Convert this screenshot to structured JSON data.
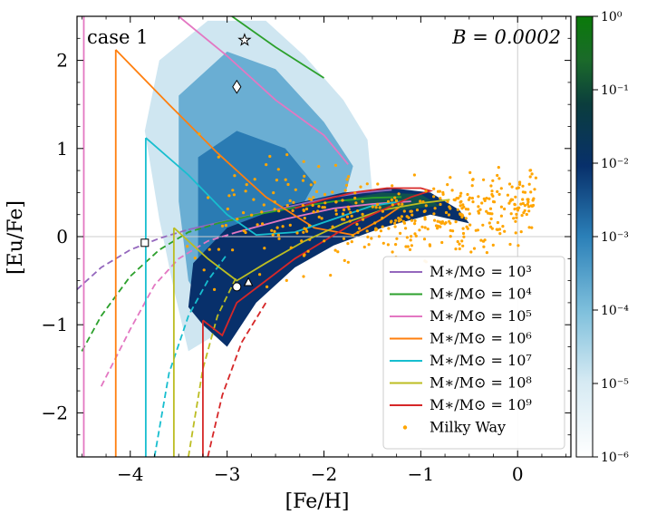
{
  "chart_data": {
    "type": "scatter",
    "xlabel": "[Fe/H]",
    "ylabel": "[Eu/Fe]",
    "xlim": [
      -4.55,
      0.55
    ],
    "ylim": [
      -2.5,
      2.5
    ],
    "x_ticks": [
      -4,
      -3,
      -2,
      -1,
      0
    ],
    "y_ticks": [
      -2,
      -1,
      0,
      1,
      2
    ],
    "x_tick_labels": [
      "−4",
      "−3",
      "−2",
      "−1",
      "0"
    ],
    "y_tick_labels": [
      "−2",
      "−1",
      "0",
      "1",
      "2"
    ],
    "annotation_left": "case 1",
    "annotation_right": "B = 0.0002",
    "legend_placement": "lower-right",
    "grid": "reference lines at x=0 and y=0",
    "colorbar": {
      "scale": "log",
      "range": [
        1e-06,
        1
      ],
      "tick_labels": [
        "10⁰",
        "10⁻¹",
        "10⁻²",
        "10⁻³",
        "10⁻⁴",
        "10⁻⁵",
        "10⁻⁶"
      ],
      "colormap": [
        "#ffffff",
        "#b9dcea",
        "#5aa8cb",
        "#1a5f9a",
        "#08306b",
        "#0b3a4a",
        "#1b6e2e",
        "#0c7a0c"
      ]
    },
    "series": [
      {
        "name": "M∗/M⊙ = 10³",
        "color": "#9467bd",
        "dashed": [
          [
            -4.55,
            -0.6
          ],
          [
            -4.3,
            -0.35
          ],
          [
            -4.0,
            -0.15
          ],
          [
            -3.7,
            -0.02
          ],
          [
            -3.4,
            0.08
          ]
        ],
        "solid": [
          [
            -3.4,
            0.08
          ],
          [
            -3.0,
            0.18
          ],
          [
            -2.6,
            0.28
          ],
          [
            -2.2,
            0.38
          ],
          [
            -1.9,
            0.45
          ],
          [
            -1.6,
            0.5
          ],
          [
            -1.3,
            0.53
          ]
        ]
      },
      {
        "name": "M∗/M⊙ = 10⁴",
        "color": "#2ca02c",
        "dashed": [
          [
            -4.5,
            -1.3
          ],
          [
            -4.3,
            -0.9
          ],
          [
            -4.0,
            -0.45
          ],
          [
            -3.7,
            -0.15
          ],
          [
            -3.4,
            0.05
          ],
          [
            -3.1,
            0.15
          ]
        ],
        "solid": [
          [
            -3.1,
            0.15
          ],
          [
            -2.7,
            0.25
          ],
          [
            -2.3,
            0.33
          ],
          [
            -1.9,
            0.4
          ],
          [
            -1.5,
            0.44
          ],
          [
            -1.2,
            0.45
          ]
        ],
        "upper": [
          [
            -2.95,
            2.5
          ],
          [
            -2.5,
            2.15
          ],
          [
            -2.0,
            1.8
          ]
        ]
      },
      {
        "name": "M∗/M⊙ = 10⁵",
        "color": "#e377c2",
        "vertical_x": -4.48,
        "dashed": [
          [
            -4.3,
            -1.7
          ],
          [
            -4.0,
            -1.05
          ],
          [
            -3.75,
            -0.55
          ],
          [
            -3.5,
            -0.25
          ],
          [
            -3.2,
            -0.05
          ],
          [
            -2.9,
            0.05
          ]
        ],
        "solid": [
          [
            -2.9,
            0.05
          ],
          [
            -2.4,
            0.2
          ],
          [
            -1.9,
            0.32
          ],
          [
            -1.5,
            0.37
          ],
          [
            -1.1,
            0.4
          ]
        ],
        "upper": [
          [
            -3.5,
            2.5
          ],
          [
            -3.0,
            2.05
          ],
          [
            -2.5,
            1.55
          ],
          [
            -2.0,
            1.15
          ],
          [
            -1.75,
            0.82
          ]
        ]
      },
      {
        "name": "M∗/M⊙ = 10⁶",
        "color": "#ff7f0e",
        "vertical_x": -4.15,
        "peak": [
          -4.15,
          2.12
        ],
        "solid": [
          [
            -4.15,
            2.12
          ],
          [
            -3.6,
            1.5
          ],
          [
            -3.1,
            0.95
          ],
          [
            -2.6,
            0.45
          ],
          [
            -2.1,
            0.1
          ],
          [
            -1.7,
            0.02
          ],
          [
            -1.4,
            0.2
          ],
          [
            -1.2,
            0.35
          ]
        ]
      },
      {
        "name": "M∗/M⊙ = 10⁷",
        "color": "#17becf",
        "vertical_x": -3.84,
        "peak": [
          -3.84,
          1.12
        ],
        "dashed": [
          [
            -3.75,
            -2.5
          ],
          [
            -3.6,
            -1.55
          ],
          [
            -3.4,
            -0.9
          ],
          [
            -3.2,
            -0.5
          ],
          [
            -3.0,
            -0.2
          ]
        ],
        "solid": [
          [
            -3.84,
            1.12
          ],
          [
            -3.4,
            0.7
          ],
          [
            -3.0,
            0.25
          ],
          [
            -2.7,
            0.02
          ],
          [
            -2.3,
            0.05
          ],
          [
            -1.9,
            0.2
          ],
          [
            -1.5,
            0.35
          ],
          [
            -1.2,
            0.4
          ]
        ]
      },
      {
        "name": "M∗/M⊙ = 10⁸",
        "color": "#bcbd22",
        "vertical_x": -3.55,
        "peak": [
          -3.55,
          0.1
        ],
        "dashed": [
          [
            -3.4,
            -2.5
          ],
          [
            -3.25,
            -1.5
          ],
          [
            -3.1,
            -0.9
          ],
          [
            -2.9,
            -0.45
          ]
        ],
        "solid": [
          [
            -3.55,
            0.1
          ],
          [
            -3.2,
            -0.25
          ],
          [
            -2.9,
            -0.5
          ],
          [
            -2.6,
            -0.3
          ],
          [
            -2.2,
            -0.05
          ],
          [
            -1.8,
            0.15
          ],
          [
            -1.4,
            0.3
          ],
          [
            -1.0,
            0.38
          ],
          [
            -0.7,
            0.42
          ]
        ]
      },
      {
        "name": "M∗/M⊙ = 10⁹",
        "color": "#d62728",
        "vertical_x": -3.25,
        "peak": [
          -3.25,
          -0.95
        ],
        "dashed": [
          [
            -3.2,
            -2.5
          ],
          [
            -3.05,
            -1.8
          ],
          [
            -2.85,
            -1.2
          ],
          [
            -2.6,
            -0.75
          ]
        ],
        "solid": [
          [
            -3.25,
            -0.95
          ],
          [
            -3.05,
            -1.12
          ],
          [
            -2.9,
            -0.75
          ],
          [
            -2.6,
            -0.5
          ],
          [
            -2.3,
            -0.25
          ],
          [
            -2.0,
            -0.05
          ],
          [
            -1.7,
            0.15
          ],
          [
            -1.4,
            0.3
          ],
          [
            -1.1,
            0.45
          ],
          [
            -0.9,
            0.52
          ],
          [
            -1.0,
            0.55
          ],
          [
            -1.35,
            0.55
          ],
          [
            -1.7,
            0.5
          ],
          [
            -2.0,
            0.42
          ],
          [
            -2.3,
            0.32
          ]
        ]
      },
      {
        "name": "Milky Way",
        "color": "#ffa500",
        "points": "many field-star points spanning [Fe/H] ≈ −3.5 to 0.2, [Eu/Fe] ≈ −1.5 to 1.8"
      }
    ],
    "markers": [
      {
        "shape": "star",
        "x": -2.82,
        "y": 2.23
      },
      {
        "shape": "diamond",
        "x": -2.9,
        "y": 1.7
      },
      {
        "shape": "square",
        "x": -3.85,
        "y": -0.07
      },
      {
        "shape": "circle",
        "x": -2.9,
        "y": -0.57
      },
      {
        "shape": "triangle",
        "x": -2.78,
        "y": -0.52
      }
    ]
  }
}
